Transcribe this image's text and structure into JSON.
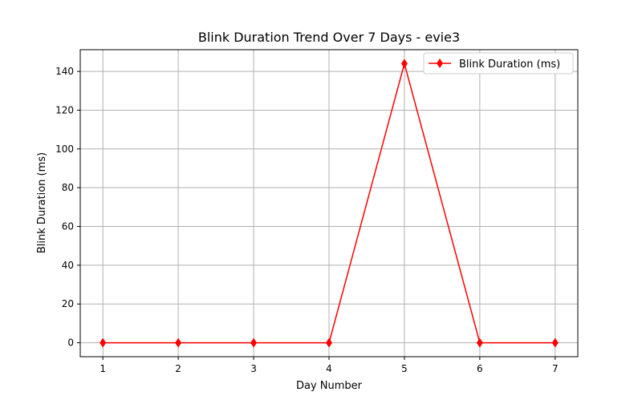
{
  "chart_data": {
    "type": "line",
    "title": "Blink Duration Trend Over 7 Days - evie3",
    "xlabel": "Day Number",
    "ylabel": "Blink Duration (ms)",
    "x": [
      1,
      2,
      3,
      4,
      5,
      6,
      7
    ],
    "series": [
      {
        "name": "Blink Duration (ms)",
        "values": [
          0,
          0,
          0,
          0,
          144,
          0,
          0
        ],
        "color": "#ff0000",
        "marker": "diamond"
      }
    ],
    "xlim": [
      0.7,
      7.3
    ],
    "ylim": [
      -7.2,
      151.2
    ],
    "xticks": [
      1,
      2,
      3,
      4,
      5,
      6,
      7
    ],
    "xtick_labels": [
      "1",
      "2",
      "3",
      "4",
      "5",
      "6",
      "7"
    ],
    "yticks": [
      0,
      20,
      40,
      60,
      80,
      100,
      120,
      140
    ],
    "ytick_labels": [
      "0",
      "20",
      "40",
      "60",
      "80",
      "100",
      "120",
      "140"
    ],
    "grid": true,
    "legend_position": "top-right"
  }
}
